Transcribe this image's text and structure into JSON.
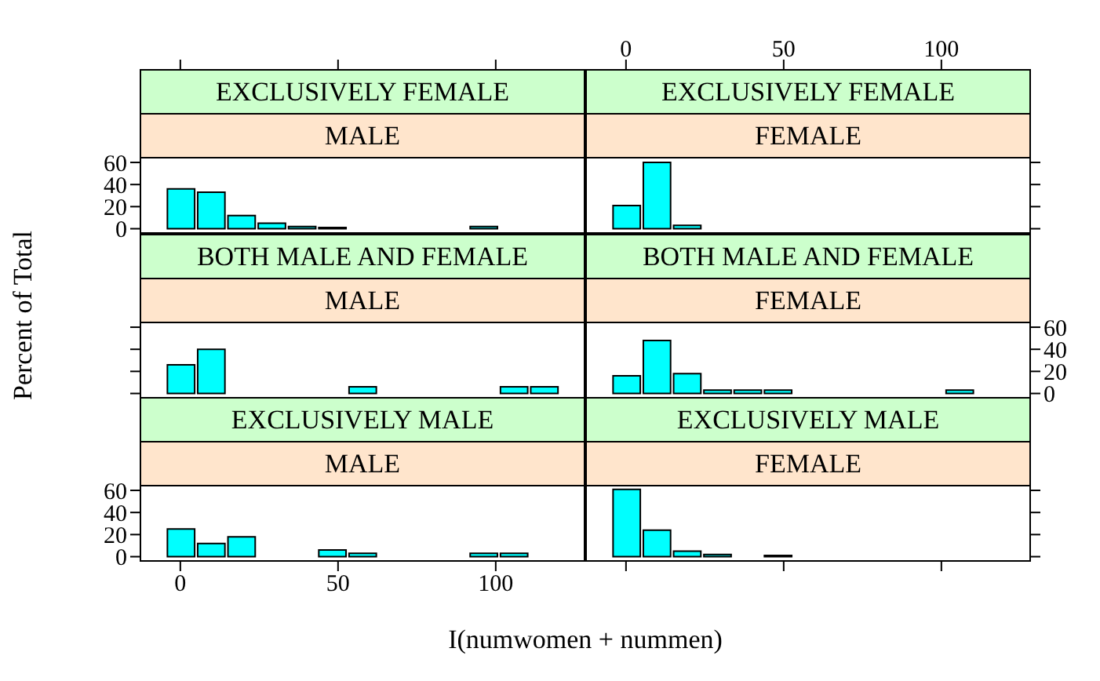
{
  "chart_data": [
    {
      "type": "histogram",
      "title": "EXCLUSIVELY FEMALE",
      "subtitle": "MALE",
      "ylabel": "Percent of Total",
      "color": "#00ffff",
      "bins": [
        -4.6,
        5,
        14.6,
        24.2,
        33.8,
        43.4,
        53,
        62.6,
        72.2,
        81.8,
        91.4,
        101,
        110.6,
        120.2
      ],
      "values": [
        36,
        33,
        12,
        5,
        2,
        1,
        0,
        0,
        0,
        0,
        2,
        0,
        0
      ],
      "xlim": [
        -12.9,
        128.4
      ],
      "xticks": [
        0,
        50,
        100
      ],
      "ylim": [
        -4.6,
        65
      ],
      "yticks": [
        0,
        20,
        40,
        60
      ],
      "tick_labels": "y"
    },
    {
      "type": "histogram",
      "title": "EXCLUSIVELY FEMALE",
      "subtitle": "FEMALE",
      "color": "#00ffff",
      "bins": [
        -4.6,
        5,
        14.6,
        24.2,
        33.8,
        43.4,
        53,
        62.6,
        72.2,
        81.8,
        91.4,
        101,
        110.6,
        120.2
      ],
      "values": [
        21,
        60,
        3,
        0,
        0,
        0,
        0,
        0,
        0,
        0,
        0,
        0,
        0
      ],
      "xlim": [
        -12.9,
        128.4
      ],
      "xticks": [
        0,
        50,
        100
      ],
      "ylim": [
        -4.6,
        65
      ],
      "yticks": [
        0,
        20,
        40,
        60
      ],
      "tick_labels": "x"
    },
    {
      "type": "histogram",
      "title": "BOTH MALE AND FEMALE",
      "subtitle": "MALE",
      "color": "#00ffff",
      "bins": [
        -4.6,
        5,
        14.6,
        24.2,
        33.8,
        43.4,
        53,
        62.6,
        72.2,
        81.8,
        91.4,
        101,
        110.6,
        120.2
      ],
      "values": [
        26,
        40,
        0,
        0,
        0,
        0,
        6,
        0,
        0,
        0,
        0,
        6,
        6
      ],
      "xlim": [
        -12.9,
        128.4
      ],
      "ylim": [
        -4.6,
        65
      ],
      "yticks": [
        0,
        20,
        40,
        60
      ],
      "tick_labels": false
    },
    {
      "type": "histogram",
      "title": "BOTH MALE AND FEMALE",
      "subtitle": "FEMALE",
      "color": "#00ffff",
      "bins": [
        -4.6,
        5,
        14.6,
        24.2,
        33.8,
        43.4,
        53,
        62.6,
        72.2,
        81.8,
        91.4,
        101,
        110.6,
        120.2
      ],
      "values": [
        16,
        48,
        18,
        3,
        3,
        3,
        0,
        0,
        0,
        0,
        0,
        3,
        0
      ],
      "xlim": [
        -12.9,
        128.4
      ],
      "ylim": [
        -4.6,
        65
      ],
      "yticks": [
        0,
        20,
        40,
        60
      ],
      "tick_labels": "y"
    },
    {
      "type": "histogram",
      "title": "EXCLUSIVELY MALE",
      "subtitle": "MALE",
      "xlabel": "I(numwomen + nummen)",
      "color": "#00ffff",
      "bins": [
        -4.6,
        5,
        14.6,
        24.2,
        33.8,
        43.4,
        53,
        62.6,
        72.2,
        81.8,
        91.4,
        101,
        110.6,
        120.2
      ],
      "values": [
        25,
        12,
        18,
        0,
        0,
        6,
        3,
        0,
        0,
        0,
        3,
        3,
        0
      ],
      "xlim": [
        -12.9,
        128.4
      ],
      "xticks": [
        0,
        50,
        100
      ],
      "ylim": [
        -4.6,
        65
      ],
      "yticks": [
        0,
        20,
        40,
        60
      ]
    },
    {
      "type": "histogram",
      "title": "EXCLUSIVELY MALE",
      "subtitle": "FEMALE",
      "color": "#00ffff",
      "bins": [
        -4.6,
        5,
        14.6,
        24.2,
        33.8,
        43.4,
        53,
        62.6,
        72.2,
        81.8,
        91.4,
        101,
        110.6,
        120.2
      ],
      "values": [
        61,
        24,
        5,
        2,
        0,
        1,
        0,
        0,
        0,
        0,
        0,
        0,
        0
      ],
      "xlim": [
        -12.9,
        128.4
      ],
      "xticks": [
        0,
        50,
        100
      ],
      "ylim": [
        -4.6,
        65
      ],
      "yticks": [
        0,
        20,
        40,
        60
      ],
      "tick_labels": false
    }
  ]
}
